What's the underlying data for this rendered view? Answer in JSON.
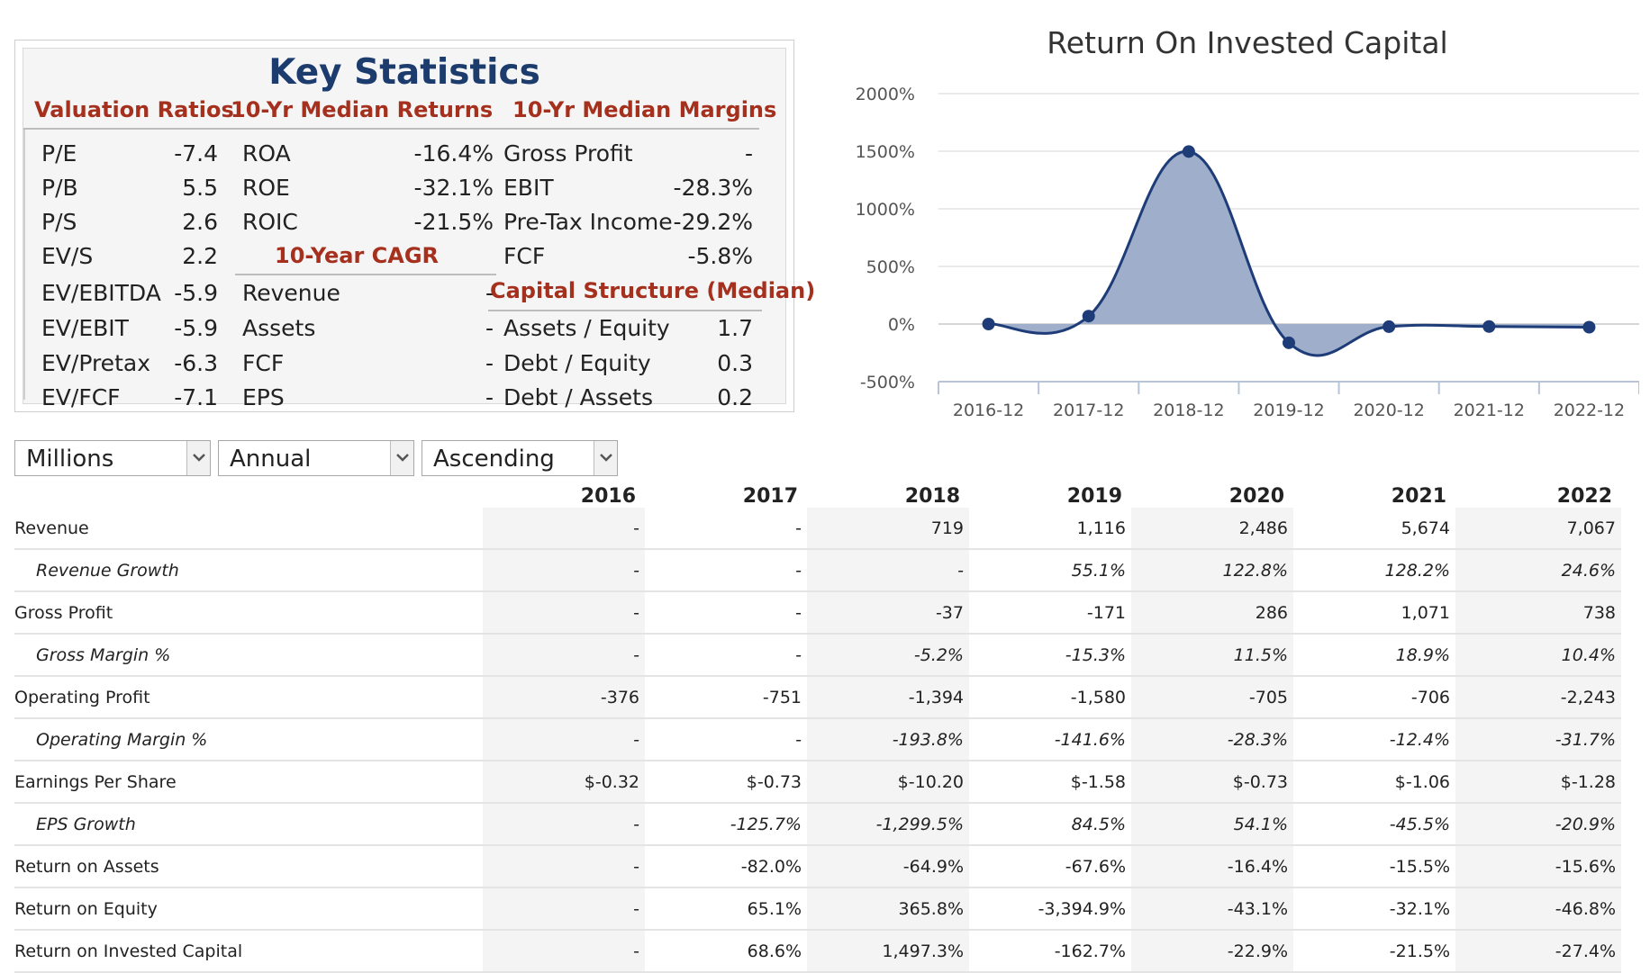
{
  "key_stats": {
    "title": "Key Statistics",
    "valuation_header": "Valuation Ratios",
    "returns_header": "10-Yr Median Returns",
    "margins_header": "10-Yr Median Margins",
    "cagr_header": "10-Year CAGR",
    "capital_header": "Capital Structure (Median)",
    "valuation": [
      {
        "label": "P/E",
        "value": "-7.4"
      },
      {
        "label": "P/B",
        "value": "5.5"
      },
      {
        "label": "P/S",
        "value": "2.6"
      },
      {
        "label": "EV/S",
        "value": "2.2"
      },
      {
        "label": "EV/EBITDA",
        "value": "-5.9"
      },
      {
        "label": "EV/EBIT",
        "value": "-5.9"
      },
      {
        "label": "EV/Pretax",
        "value": "-6.3"
      },
      {
        "label": "EV/FCF",
        "value": "-7.1"
      }
    ],
    "returns": [
      {
        "label": "ROA",
        "value": "-16.4%"
      },
      {
        "label": "ROE",
        "value": "-32.1%"
      },
      {
        "label": "ROIC",
        "value": "-21.5%"
      }
    ],
    "cagr": [
      {
        "label": "Revenue",
        "value": "-"
      },
      {
        "label": "Assets",
        "value": "-"
      },
      {
        "label": "FCF",
        "value": "-"
      },
      {
        "label": "EPS",
        "value": "-"
      }
    ],
    "margins": [
      {
        "label": "Gross Profit",
        "value": "-"
      },
      {
        "label": "EBIT",
        "value": "-28.3%"
      },
      {
        "label": "Pre-Tax Income",
        "value": "-29.2%"
      },
      {
        "label": "FCF",
        "value": "-5.8%"
      }
    ],
    "capital": [
      {
        "label": "Assets / Equity",
        "value": "1.7"
      },
      {
        "label": "Debt / Equity",
        "value": "0.3"
      },
      {
        "label": "Debt / Assets",
        "value": "0.2"
      }
    ]
  },
  "chart_data": {
    "type": "area",
    "title": "Return On Invested Capital",
    "categories": [
      "2016-12",
      "2017-12",
      "2018-12",
      "2019-12",
      "2020-12",
      "2021-12",
      "2022-12"
    ],
    "values": [
      0,
      68.6,
      1497.3,
      -162.7,
      -22.9,
      -21.5,
      -27.4
    ],
    "y_ticks": [
      "2000%",
      "1500%",
      "1000%",
      "500%",
      "0%",
      "-500%"
    ],
    "ylim": [
      -500,
      2000
    ],
    "unit": "%",
    "line_color": "#1d3c78",
    "fill_color": "#9aabc8"
  },
  "controls": {
    "units": "Millions",
    "period": "Annual",
    "order": "Ascending"
  },
  "table": {
    "years": [
      "2016",
      "2017",
      "2018",
      "2019",
      "2020",
      "2021",
      "2022"
    ],
    "rows": [
      {
        "label": "Revenue",
        "sub": false,
        "values": [
          "-",
          "-",
          "719",
          "1,116",
          "2,486",
          "5,674",
          "7,067"
        ]
      },
      {
        "label": "Revenue Growth",
        "sub": true,
        "values": [
          "-",
          "-",
          "-",
          "55.1%",
          "122.8%",
          "128.2%",
          "24.6%"
        ]
      },
      {
        "label": "Gross Profit",
        "sub": false,
        "values": [
          "-",
          "-",
          "-37",
          "-171",
          "286",
          "1,071",
          "738"
        ]
      },
      {
        "label": "Gross Margin %",
        "sub": true,
        "values": [
          "-",
          "-",
          "-5.2%",
          "-15.3%",
          "11.5%",
          "18.9%",
          "10.4%"
        ]
      },
      {
        "label": "Operating Profit",
        "sub": false,
        "values": [
          "-376",
          "-751",
          "-1,394",
          "-1,580",
          "-705",
          "-706",
          "-2,243"
        ]
      },
      {
        "label": "Operating Margin %",
        "sub": true,
        "values": [
          "-",
          "-",
          "-193.8%",
          "-141.6%",
          "-28.3%",
          "-12.4%",
          "-31.7%"
        ]
      },
      {
        "label": "Earnings Per Share",
        "sub": false,
        "values": [
          "$-0.32",
          "$-0.73",
          "$-10.20",
          "$-1.58",
          "$-0.73",
          "$-1.06",
          "$-1.28"
        ]
      },
      {
        "label": "EPS Growth",
        "sub": true,
        "values": [
          "-",
          "-125.7%",
          "-1,299.5%",
          "84.5%",
          "54.1%",
          "-45.5%",
          "-20.9%"
        ]
      },
      {
        "label": "Return on Assets",
        "sub": false,
        "values": [
          "-",
          "-82.0%",
          "-64.9%",
          "-67.6%",
          "-16.4%",
          "-15.5%",
          "-15.6%"
        ]
      },
      {
        "label": "Return on Equity",
        "sub": false,
        "values": [
          "-",
          "65.1%",
          "365.8%",
          "-3,394.9%",
          "-43.1%",
          "-32.1%",
          "-46.8%"
        ]
      },
      {
        "label": "Return on Invested Capital",
        "sub": false,
        "values": [
          "-",
          "68.6%",
          "1,497.3%",
          "-162.7%",
          "-22.9%",
          "-21.5%",
          "-27.4%"
        ]
      }
    ]
  }
}
